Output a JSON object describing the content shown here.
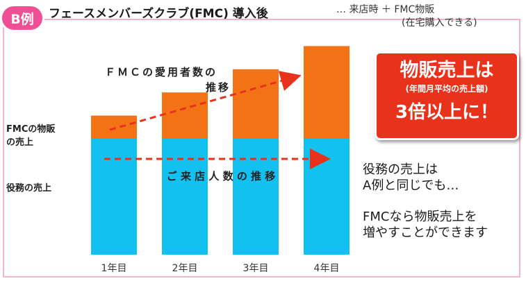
{
  "badge": "B例",
  "title": "フェースメンバーズクラブ(FMC) 導入後",
  "note": {
    "line1": "… 来店時 ＋ FMC物販",
    "line2": "(在宅購入できる)"
  },
  "row_labels": {
    "fmc": [
      "FMCの物販",
      "の売上"
    ],
    "service": "役務の売上"
  },
  "callout": {
    "line1": "物販売上は",
    "line2": "(年間月平均の売上額)",
    "line3": "3倍以上に！"
  },
  "description": {
    "line1": "役務の売上は",
    "line2": "A例と同じでも…",
    "line3": "FMCなら物販売上を",
    "line4": "増やすことができます"
  },
  "colors": {
    "service": "#12c1ef",
    "fmc": "#f47216",
    "arrow": "#e8321b",
    "badge": "#ee4f95",
    "frame": "#f4b2cf"
  },
  "chart_data": {
    "type": "bar",
    "stacked": true,
    "categories": [
      "1年目",
      "2年目",
      "3年目",
      "4年目"
    ],
    "series": [
      {
        "name": "役務の売上",
        "values": [
          1,
          1,
          1,
          1
        ]
      },
      {
        "name": "FMCの物販の売上",
        "values": [
          0.2,
          0.4,
          0.6,
          0.8
        ]
      }
    ],
    "annotations": [
      {
        "text": [
          "ＦＭＣの愛用者数の",
          "推移"
        ],
        "trend": "rising"
      },
      {
        "text": [
          "ご 来 店 人 数 の 推 移"
        ],
        "trend": "flat"
      }
    ],
    "legend": "left"
  }
}
